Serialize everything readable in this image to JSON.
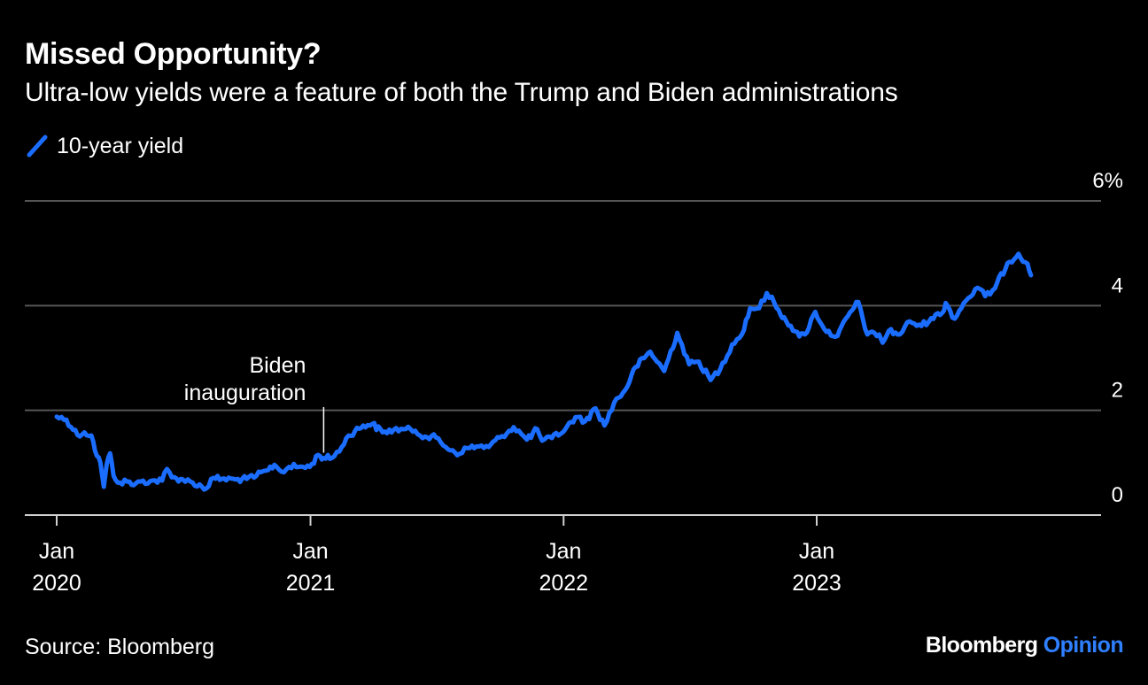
{
  "header": {
    "title": "Missed Opportunity?",
    "subtitle": "Ultra-low yields were a feature of both the Trump and Biden administrations"
  },
  "legend": {
    "series_label": "10-year yield"
  },
  "footer": {
    "source": "Source: Bloomberg",
    "brand_primary": "Bloomberg",
    "brand_secondary": "Opinion"
  },
  "colors": {
    "background": "#000000",
    "series": "#1a6dff",
    "grid": "#555555",
    "axis": "#d0d0d0",
    "text": "#ffffff",
    "brand_accent": "#2f80ff"
  },
  "chart_data": {
    "type": "line",
    "title": "Missed Opportunity?",
    "subtitle": "Ultra-low yields were a feature of both the Trump and Biden administrations",
    "xlabel": "",
    "ylabel": "",
    "ylim": [
      0,
      6
    ],
    "y_ticks": [
      {
        "value": 0,
        "label": "0"
      },
      {
        "value": 2,
        "label": "2"
      },
      {
        "value": 4,
        "label": "4"
      },
      {
        "value": 6,
        "label": "6%"
      }
    ],
    "x_ticks": [
      {
        "date": "2020-01-01",
        "month": "Jan",
        "year": "2020"
      },
      {
        "date": "2021-01-01",
        "month": "Jan",
        "year": "2021"
      },
      {
        "date": "2022-01-01",
        "month": "Jan",
        "year": "2022"
      },
      {
        "date": "2023-01-01",
        "month": "Jan",
        "year": "2023"
      }
    ],
    "grid": true,
    "legend_position": "top-left",
    "annotations": [
      {
        "date": "2021-01-20",
        "value": 1.09,
        "text_lines": [
          "Biden",
          "inauguration"
        ]
      }
    ],
    "series": [
      {
        "name": "10-year yield",
        "color": "#1a6dff",
        "points": [
          [
            "2020-01-01",
            1.88
          ],
          [
            "2020-01-15",
            1.82
          ],
          [
            "2020-01-31",
            1.53
          ],
          [
            "2020-02-10",
            1.58
          ],
          [
            "2020-02-20",
            1.52
          ],
          [
            "2020-02-28",
            1.13
          ],
          [
            "2020-03-04",
            1.0
          ],
          [
            "2020-03-09",
            0.54
          ],
          [
            "2020-03-13",
            0.96
          ],
          [
            "2020-03-18",
            1.18
          ],
          [
            "2020-03-23",
            0.75
          ],
          [
            "2020-04-01",
            0.62
          ],
          [
            "2020-04-15",
            0.64
          ],
          [
            "2020-04-21",
            0.57
          ],
          [
            "2020-05-01",
            0.64
          ],
          [
            "2020-05-15",
            0.65
          ],
          [
            "2020-06-01",
            0.66
          ],
          [
            "2020-06-08",
            0.88
          ],
          [
            "2020-06-15",
            0.72
          ],
          [
            "2020-07-01",
            0.68
          ],
          [
            "2020-07-15",
            0.62
          ],
          [
            "2020-08-04",
            0.51
          ],
          [
            "2020-08-14",
            0.71
          ],
          [
            "2020-08-26",
            0.69
          ],
          [
            "2020-09-15",
            0.68
          ],
          [
            "2020-10-01",
            0.69
          ],
          [
            "2020-10-15",
            0.75
          ],
          [
            "2020-11-01",
            0.86
          ],
          [
            "2020-11-10",
            0.96
          ],
          [
            "2020-11-20",
            0.83
          ],
          [
            "2020-12-01",
            0.92
          ],
          [
            "2020-12-15",
            0.92
          ],
          [
            "2020-12-31",
            0.92
          ],
          [
            "2021-01-12",
            1.15
          ],
          [
            "2021-01-20",
            1.09
          ],
          [
            "2021-02-01",
            1.09
          ],
          [
            "2021-02-15",
            1.3
          ],
          [
            "2021-02-25",
            1.52
          ],
          [
            "2021-03-18",
            1.71
          ],
          [
            "2021-03-31",
            1.74
          ],
          [
            "2021-04-15",
            1.58
          ],
          [
            "2021-05-01",
            1.63
          ],
          [
            "2021-05-15",
            1.64
          ],
          [
            "2021-06-01",
            1.61
          ],
          [
            "2021-06-15",
            1.5
          ],
          [
            "2021-07-01",
            1.48
          ],
          [
            "2021-07-15",
            1.3
          ],
          [
            "2021-08-04",
            1.17
          ],
          [
            "2021-08-15",
            1.28
          ],
          [
            "2021-09-01",
            1.31
          ],
          [
            "2021-09-15",
            1.3
          ],
          [
            "2021-10-01",
            1.48
          ],
          [
            "2021-10-21",
            1.68
          ],
          [
            "2021-11-01",
            1.55
          ],
          [
            "2021-11-09",
            1.44
          ],
          [
            "2021-11-24",
            1.64
          ],
          [
            "2021-12-01",
            1.42
          ],
          [
            "2021-12-15",
            1.47
          ],
          [
            "2022-01-03",
            1.63
          ],
          [
            "2022-01-18",
            1.87
          ],
          [
            "2022-02-01",
            1.79
          ],
          [
            "2022-02-16",
            2.04
          ],
          [
            "2022-03-01",
            1.71
          ],
          [
            "2022-03-15",
            2.15
          ],
          [
            "2022-03-31",
            2.39
          ],
          [
            "2022-04-15",
            2.83
          ],
          [
            "2022-05-06",
            3.12
          ],
          [
            "2022-05-26",
            2.75
          ],
          [
            "2022-06-14",
            3.48
          ],
          [
            "2022-07-01",
            2.88
          ],
          [
            "2022-07-15",
            2.93
          ],
          [
            "2022-08-01",
            2.58
          ],
          [
            "2022-08-15",
            2.79
          ],
          [
            "2022-09-01",
            3.26
          ],
          [
            "2022-09-15",
            3.45
          ],
          [
            "2022-09-27",
            3.95
          ],
          [
            "2022-10-10",
            3.95
          ],
          [
            "2022-10-21",
            4.24
          ],
          [
            "2022-11-01",
            4.05
          ],
          [
            "2022-11-10",
            3.82
          ],
          [
            "2022-11-15",
            3.78
          ],
          [
            "2022-12-01",
            3.51
          ],
          [
            "2022-12-07",
            3.41
          ],
          [
            "2022-12-15",
            3.45
          ],
          [
            "2022-12-30",
            3.88
          ],
          [
            "2023-01-15",
            3.5
          ],
          [
            "2023-01-31",
            3.42
          ],
          [
            "2023-02-15",
            3.8
          ],
          [
            "2023-03-02",
            4.07
          ],
          [
            "2023-03-15",
            3.45
          ],
          [
            "2023-04-01",
            3.45
          ],
          [
            "2023-04-06",
            3.29
          ],
          [
            "2023-04-15",
            3.52
          ],
          [
            "2023-05-01",
            3.45
          ],
          [
            "2023-05-15",
            3.7
          ],
          [
            "2023-06-01",
            3.61
          ],
          [
            "2023-06-15",
            3.76
          ],
          [
            "2023-07-01",
            3.86
          ],
          [
            "2023-07-06",
            4.05
          ],
          [
            "2023-07-19",
            3.75
          ],
          [
            "2023-08-01",
            4.05
          ],
          [
            "2023-08-21",
            4.34
          ],
          [
            "2023-09-01",
            4.18
          ],
          [
            "2023-09-15",
            4.33
          ],
          [
            "2023-10-03",
            4.81
          ],
          [
            "2023-10-19",
            4.99
          ],
          [
            "2023-11-01",
            4.8
          ],
          [
            "2023-11-06",
            4.58
          ]
        ]
      }
    ]
  }
}
